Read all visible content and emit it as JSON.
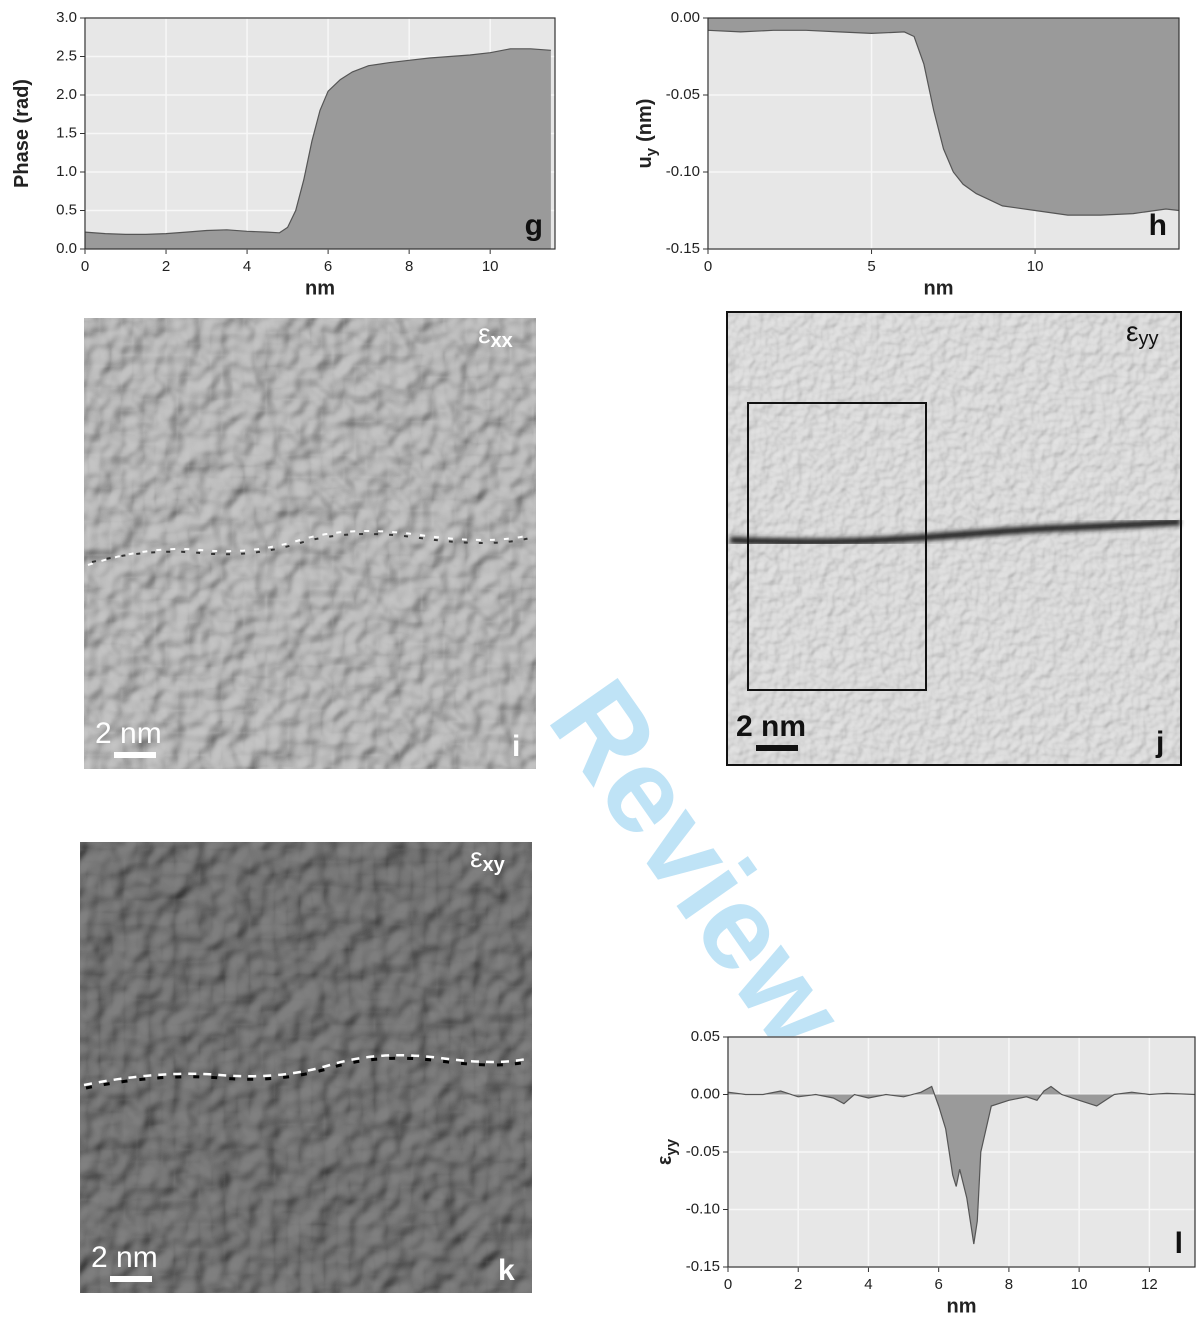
{
  "chart_data": [
    {
      "type": "area",
      "panel": "g",
      "ylabel": "Phase (rad)",
      "xlabel": "nm",
      "color": "#9a9a9a",
      "grid": true,
      "x": [
        0,
        0.5,
        1,
        1.5,
        2,
        2.5,
        3,
        3.5,
        4,
        4.5,
        4.8,
        5,
        5.2,
        5.4,
        5.6,
        5.8,
        6,
        6.3,
        6.6,
        7,
        7.5,
        8,
        8.5,
        9,
        9.5,
        10,
        10.5,
        11,
        11.5
      ],
      "values": [
        0.22,
        0.2,
        0.19,
        0.19,
        0.2,
        0.22,
        0.24,
        0.25,
        0.23,
        0.22,
        0.21,
        0.28,
        0.5,
        0.9,
        1.4,
        1.8,
        2.05,
        2.2,
        2.3,
        2.38,
        2.42,
        2.45,
        2.48,
        2.5,
        2.52,
        2.55,
        2.6,
        2.6,
        2.58
      ],
      "xlim": [
        0,
        11.6
      ],
      "ylim": [
        0,
        3
      ],
      "xticks": [
        0,
        2,
        4,
        6,
        8,
        10
      ],
      "yticks": [
        {
          "value": 0,
          "label": "0.0"
        },
        0.5,
        {
          "value": 1,
          "label": "1.0"
        },
        1.5,
        {
          "value": 2,
          "label": "2.0"
        },
        2.5,
        {
          "value": 3,
          "label": "3.0"
        }
      ]
    },
    {
      "type": "area",
      "panel": "h",
      "ylabel": "u",
      "ylabel_sub": "y",
      "ylabel_unit": "(nm)",
      "xlabel": "nm",
      "color": "#9a9a9a",
      "grid": true,
      "x": [
        0,
        1,
        2,
        3,
        4,
        5,
        6,
        6.3,
        6.6,
        6.9,
        7.2,
        7.5,
        7.8,
        8.2,
        8.6,
        9,
        10,
        11,
        12,
        13,
        14,
        14.4
      ],
      "values": [
        -0.008,
        -0.009,
        -0.008,
        -0.008,
        -0.009,
        -0.01,
        -0.009,
        -0.012,
        -0.03,
        -0.06,
        -0.085,
        -0.1,
        -0.108,
        -0.114,
        -0.118,
        -0.122,
        -0.125,
        -0.128,
        -0.128,
        -0.127,
        -0.124,
        -0.125
      ],
      "xlim": [
        0,
        14.4
      ],
      "ylim": [
        -0.15,
        0
      ],
      "xticks": [
        0,
        5,
        10
      ],
      "yticks": [
        {
          "value": 0,
          "label": "0.00"
        },
        -0.05,
        {
          "value": -0.1,
          "label": "-0.10"
        },
        -0.15
      ]
    },
    {
      "type": "area",
      "panel": "l",
      "ylabel": "ε",
      "ylabel_sub": "yy",
      "xlabel": "nm",
      "color": "#9a9a9a",
      "grid": true,
      "x": [
        0,
        0.5,
        1,
        1.5,
        2,
        2.5,
        3,
        3.3,
        3.6,
        4,
        4.5,
        5,
        5.5,
        5.8,
        6,
        6.2,
        6.4,
        6.5,
        6.6,
        6.8,
        7,
        7.1,
        7.2,
        7.5,
        8,
        8.5,
        8.8,
        9,
        9.2,
        9.5,
        10,
        10.5,
        11,
        11.5,
        12,
        12.5,
        13.3
      ],
      "values": [
        0.002,
        0,
        0,
        0.003,
        -0.002,
        0,
        -0.003,
        -0.008,
        0,
        -0.003,
        0,
        -0.002,
        0.002,
        0.007,
        -0.01,
        -0.03,
        -0.07,
        -0.08,
        -0.065,
        -0.09,
        -0.13,
        -0.11,
        -0.05,
        -0.01,
        -0.005,
        -0.002,
        -0.005,
        0.003,
        0.007,
        0,
        -0.005,
        -0.01,
        0,
        0.002,
        0,
        0.001,
        0
      ],
      "xlim": [
        0,
        13.3
      ],
      "ylim": [
        -0.15,
        0.05
      ],
      "xticks": [
        0,
        2,
        4,
        6,
        8,
        10,
        12
      ],
      "yticks": [
        0.05,
        {
          "value": 0,
          "label": "0.00"
        },
        -0.05,
        {
          "value": -0.1,
          "label": "-0.10"
        },
        -0.15
      ]
    }
  ],
  "images": [
    {
      "symbol": "ε",
      "subscript": "xx",
      "scale_bar": "2 nm",
      "panel": "i"
    },
    {
      "symbol": "ε",
      "subscript": "yy",
      "scale_bar": "2 nm",
      "panel": "j"
    },
    {
      "symbol": "ε",
      "subscript": "xy",
      "scale_bar": "2 nm",
      "panel": "k"
    }
  ],
  "watermark": "Review"
}
